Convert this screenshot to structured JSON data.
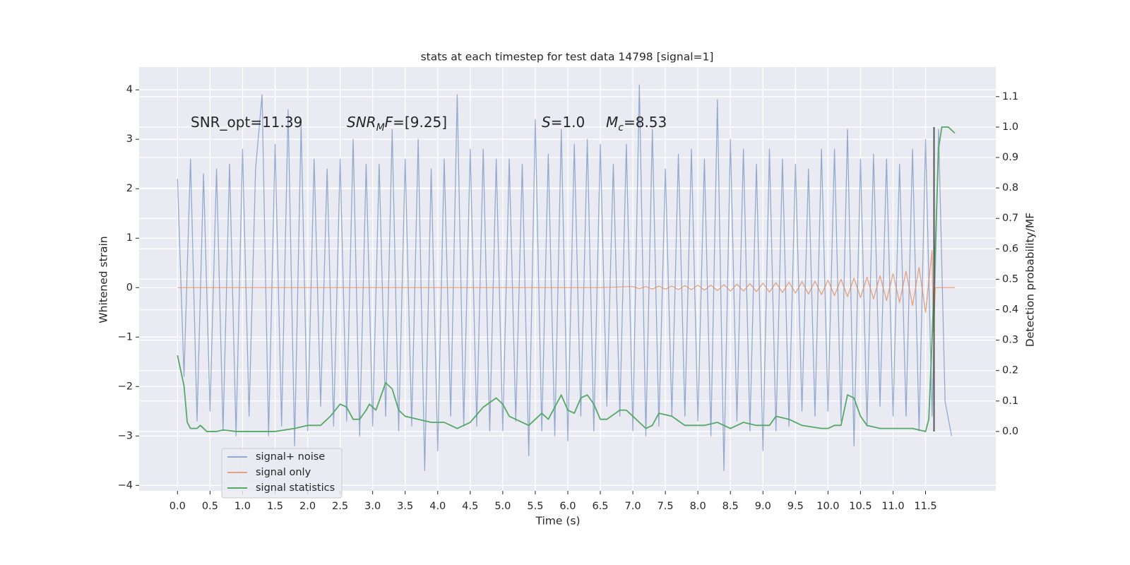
{
  "chart_data": {
    "type": "line",
    "title": "stats at each timestep for test data 14798 [signal=1]",
    "xlabel": "Time (s)",
    "ylabel": "Whitened strain",
    "y2label": "Detection probability/MF",
    "xlim": [
      -0.59,
      12.58
    ],
    "ylim": [
      -4.11,
      4.46
    ],
    "y2lim": [
      -0.195,
      1.197
    ],
    "xticks": [
      {
        "value": 0,
        "label": "0.0"
      },
      0.5,
      {
        "value": 1,
        "label": "1.0"
      },
      1.5,
      {
        "value": 2,
        "label": "2.0"
      },
      2.5,
      {
        "value": 3,
        "label": "3.0"
      },
      3.5,
      {
        "value": 4,
        "label": "4.0"
      },
      4.5,
      {
        "value": 5,
        "label": "5.0"
      },
      5.5,
      {
        "value": 6,
        "label": "6.0"
      },
      6.5,
      {
        "value": 7,
        "label": "7.0"
      },
      7.5,
      {
        "value": 8,
        "label": "8.0"
      },
      8.5,
      {
        "value": 9,
        "label": "9.0"
      },
      9.5,
      {
        "value": 10,
        "label": "10.0"
      },
      10.5,
      {
        "value": 11,
        "label": "11.0"
      },
      11.5
    ],
    "yticks": [
      {
        "value": -4,
        "label": "−4"
      },
      {
        "value": -3,
        "label": "−3"
      },
      {
        "value": -2,
        "label": "−2"
      },
      {
        "value": -1,
        "label": "−1"
      },
      0,
      1,
      2,
      3,
      4
    ],
    "y2ticks": [
      {
        "value": 0,
        "label": "0.0"
      },
      0.1,
      0.2,
      0.3,
      0.4,
      0.5,
      0.6,
      0.7,
      0.8,
      0.9,
      {
        "value": 1,
        "label": "1.0"
      },
      1.1
    ],
    "grid": true,
    "legend_loc": "lower left",
    "series": [
      {
        "name": "signal+ noise",
        "color": "#4c72b0",
        "opacity": 0.55,
        "x": [
          0.0,
          0.1,
          0.2,
          0.3,
          0.4,
          0.5,
          0.6,
          0.7,
          0.8,
          0.9,
          1.0,
          1.1,
          1.2,
          1.3,
          1.4,
          1.5,
          1.6,
          1.7,
          1.8,
          1.9,
          2.0,
          2.1,
          2.2,
          2.3,
          2.4,
          2.5,
          2.6,
          2.7,
          2.8,
          2.9,
          3.0,
          3.1,
          3.2,
          3.3,
          3.4,
          3.5,
          3.6,
          3.7,
          3.8,
          3.9,
          4.0,
          4.1,
          4.2,
          4.3,
          4.4,
          4.5,
          4.6,
          4.7,
          4.8,
          4.9,
          5.0,
          5.1,
          5.2,
          5.3,
          5.4,
          5.5,
          5.6,
          5.7,
          5.8,
          5.9,
          6.0,
          6.1,
          6.2,
          6.3,
          6.4,
          6.5,
          6.6,
          6.7,
          6.8,
          6.9,
          7.0,
          7.1,
          7.2,
          7.3,
          7.4,
          7.5,
          7.6,
          7.7,
          7.8,
          7.9,
          8.0,
          8.1,
          8.2,
          8.3,
          8.4,
          8.5,
          8.6,
          8.7,
          8.8,
          8.9,
          9.0,
          9.1,
          9.2,
          9.3,
          9.4,
          9.5,
          9.6,
          9.7,
          9.8,
          9.9,
          10.0,
          10.1,
          10.2,
          10.3,
          10.4,
          10.5,
          10.6,
          10.7,
          10.8,
          10.9,
          11.0,
          11.1,
          11.2,
          11.3,
          11.4,
          11.5,
          11.6,
          11.7,
          11.8,
          11.9
        ],
        "values": [
          2.2,
          -1.8,
          2.6,
          -2.7,
          2.3,
          -2.5,
          2.4,
          -2.9,
          2.5,
          -3.0,
          2.8,
          -2.6,
          2.4,
          3.9,
          -3.0,
          2.9,
          -2.8,
          3.6,
          -3.2,
          3.3,
          -2.9,
          2.6,
          -2.4,
          2.4,
          -2.8,
          2.6,
          -2.7,
          3.0,
          -3.0,
          2.5,
          -2.8,
          2.5,
          -2.6,
          3.2,
          -2.9,
          2.6,
          -2.8,
          3.0,
          -3.7,
          2.4,
          -3.3,
          2.6,
          -2.6,
          3.9,
          -2.8,
          2.8,
          -2.8,
          2.8,
          -2.9,
          2.6,
          -2.9,
          2.6,
          -2.7,
          2.5,
          -3.4,
          3.4,
          -2.9,
          2.7,
          -3.0,
          3.2,
          -3.1,
          2.9,
          -2.6,
          3.0,
          -2.9,
          2.9,
          -2.4,
          2.5,
          -2.6,
          2.9,
          -2.9,
          4.1,
          -3.0,
          3.2,
          -2.8,
          2.4,
          -2.6,
          2.7,
          -2.6,
          2.8,
          -2.7,
          2.6,
          -3.0,
          3.8,
          -3.7,
          3.0,
          -2.7,
          2.8,
          -2.9,
          2.5,
          -3.3,
          2.8,
          -2.9,
          2.6,
          -2.8,
          2.5,
          -2.5,
          2.4,
          -2.6,
          2.8,
          -2.5,
          2.8,
          -2.7,
          3.2,
          -3.2,
          2.6,
          -2.8,
          2.7,
          -2.4,
          2.6,
          -2.6,
          2.5,
          -2.6,
          2.8,
          -2.9,
          3.0,
          -2.6,
          3.2,
          -2.3,
          -3.0
        ]
      },
      {
        "name": "signal only",
        "color": "#dd8452",
        "opacity": 0.7,
        "x": [
          0.0,
          6.5,
          7.0,
          7.1,
          7.2,
          7.3,
          7.4,
          7.5,
          7.6,
          7.7,
          7.8,
          7.9,
          8.0,
          8.1,
          8.2,
          8.3,
          8.4,
          8.5,
          8.6,
          8.7,
          8.8,
          8.9,
          9.0,
          9.1,
          9.2,
          9.3,
          9.4,
          9.5,
          9.6,
          9.7,
          9.8,
          9.9,
          10.0,
          10.1,
          10.2,
          10.3,
          10.4,
          10.5,
          10.6,
          10.7,
          10.8,
          10.9,
          11.0,
          11.1,
          11.2,
          11.3,
          11.4,
          11.5,
          11.6,
          11.62,
          11.65,
          11.95
        ],
        "values": [
          0,
          0,
          0.02,
          -0.02,
          0.02,
          -0.03,
          0.03,
          -0.03,
          0.03,
          -0.04,
          0.04,
          -0.04,
          0.05,
          -0.05,
          0.05,
          -0.06,
          0.06,
          -0.07,
          0.07,
          -0.07,
          0.08,
          -0.08,
          0.09,
          -0.09,
          0.1,
          -0.1,
          0.11,
          -0.11,
          0.12,
          -0.13,
          0.13,
          -0.14,
          0.15,
          -0.16,
          0.17,
          -0.18,
          0.19,
          -0.2,
          0.21,
          -0.23,
          0.24,
          -0.26,
          0.28,
          -0.3,
          0.33,
          -0.36,
          0.41,
          -0.5,
          0.75,
          -0.9,
          0,
          0
        ]
      },
      {
        "name": "signal statistics",
        "color": "#55a868",
        "axis": "y2",
        "opacity": 1,
        "x": [
          0.0,
          0.1,
          0.15,
          0.2,
          0.3,
          0.35,
          0.45,
          0.6,
          0.7,
          0.9,
          1.2,
          1.5,
          1.8,
          2.0,
          2.2,
          2.35,
          2.5,
          2.6,
          2.7,
          2.8,
          2.9,
          2.95,
          3.05,
          3.1,
          3.2,
          3.3,
          3.4,
          3.5,
          3.7,
          3.9,
          4.1,
          4.3,
          4.5,
          4.7,
          4.9,
          5.0,
          5.1,
          5.3,
          5.4,
          5.5,
          5.6,
          5.7,
          5.8,
          5.9,
          6.0,
          6.1,
          6.2,
          6.3,
          6.4,
          6.5,
          6.6,
          6.8,
          6.9,
          7.1,
          7.2,
          7.3,
          7.4,
          7.6,
          7.8,
          7.9,
          8.1,
          8.3,
          8.5,
          8.7,
          8.9,
          9.1,
          9.2,
          9.4,
          9.6,
          9.9,
          10.0,
          10.1,
          10.2,
          10.3,
          10.4,
          10.5,
          10.6,
          10.8,
          11.0,
          11.3,
          11.5,
          11.55,
          11.6,
          11.65,
          11.7,
          11.75,
          11.85,
          11.95
        ],
        "values": [
          0.25,
          0.15,
          0.03,
          0.01,
          0.01,
          0.02,
          0.0,
          0.0,
          0.005,
          0.0,
          0.0,
          0.0,
          0.01,
          0.02,
          0.02,
          0.05,
          0.09,
          0.08,
          0.04,
          0.04,
          0.07,
          0.09,
          0.07,
          0.1,
          0.16,
          0.14,
          0.07,
          0.05,
          0.04,
          0.03,
          0.03,
          0.01,
          0.03,
          0.08,
          0.11,
          0.09,
          0.05,
          0.03,
          0.02,
          0.04,
          0.06,
          0.04,
          0.08,
          0.12,
          0.07,
          0.06,
          0.11,
          0.12,
          0.09,
          0.04,
          0.04,
          0.07,
          0.07,
          0.03,
          0.01,
          0.02,
          0.06,
          0.05,
          0.02,
          0.02,
          0.02,
          0.03,
          0.01,
          0.03,
          0.02,
          0.02,
          0.05,
          0.04,
          0.02,
          0.01,
          0.01,
          0.02,
          0.02,
          0.12,
          0.11,
          0.05,
          0.02,
          0.01,
          0.01,
          0.01,
          0.0,
          0.04,
          0.3,
          0.6,
          0.93,
          1.0,
          1.0,
          0.98
        ]
      }
    ],
    "vline": {
      "x": 11.63,
      "y2": [
        0,
        1.0
      ],
      "color": "#555555"
    },
    "annotations": [
      {
        "parts": [
          {
            "text": "SNR_opt=11.39"
          }
        ]
      },
      {
        "parts": [
          {
            "text": "SNR",
            "italic": true
          },
          {
            "text": "M",
            "italic": true,
            "sub": true
          },
          {
            "text": "F",
            "italic": true
          },
          {
            "text": "=[9.25]"
          }
        ]
      },
      {
        "parts": [
          {
            "text": "S",
            "italic": true
          },
          {
            "text": "=1.0"
          }
        ]
      },
      {
        "parts": [
          {
            "text": "M",
            "italic": true
          },
          {
            "text": "c",
            "italic": true,
            "sub": true
          },
          {
            "text": "=8.53"
          }
        ]
      }
    ]
  }
}
